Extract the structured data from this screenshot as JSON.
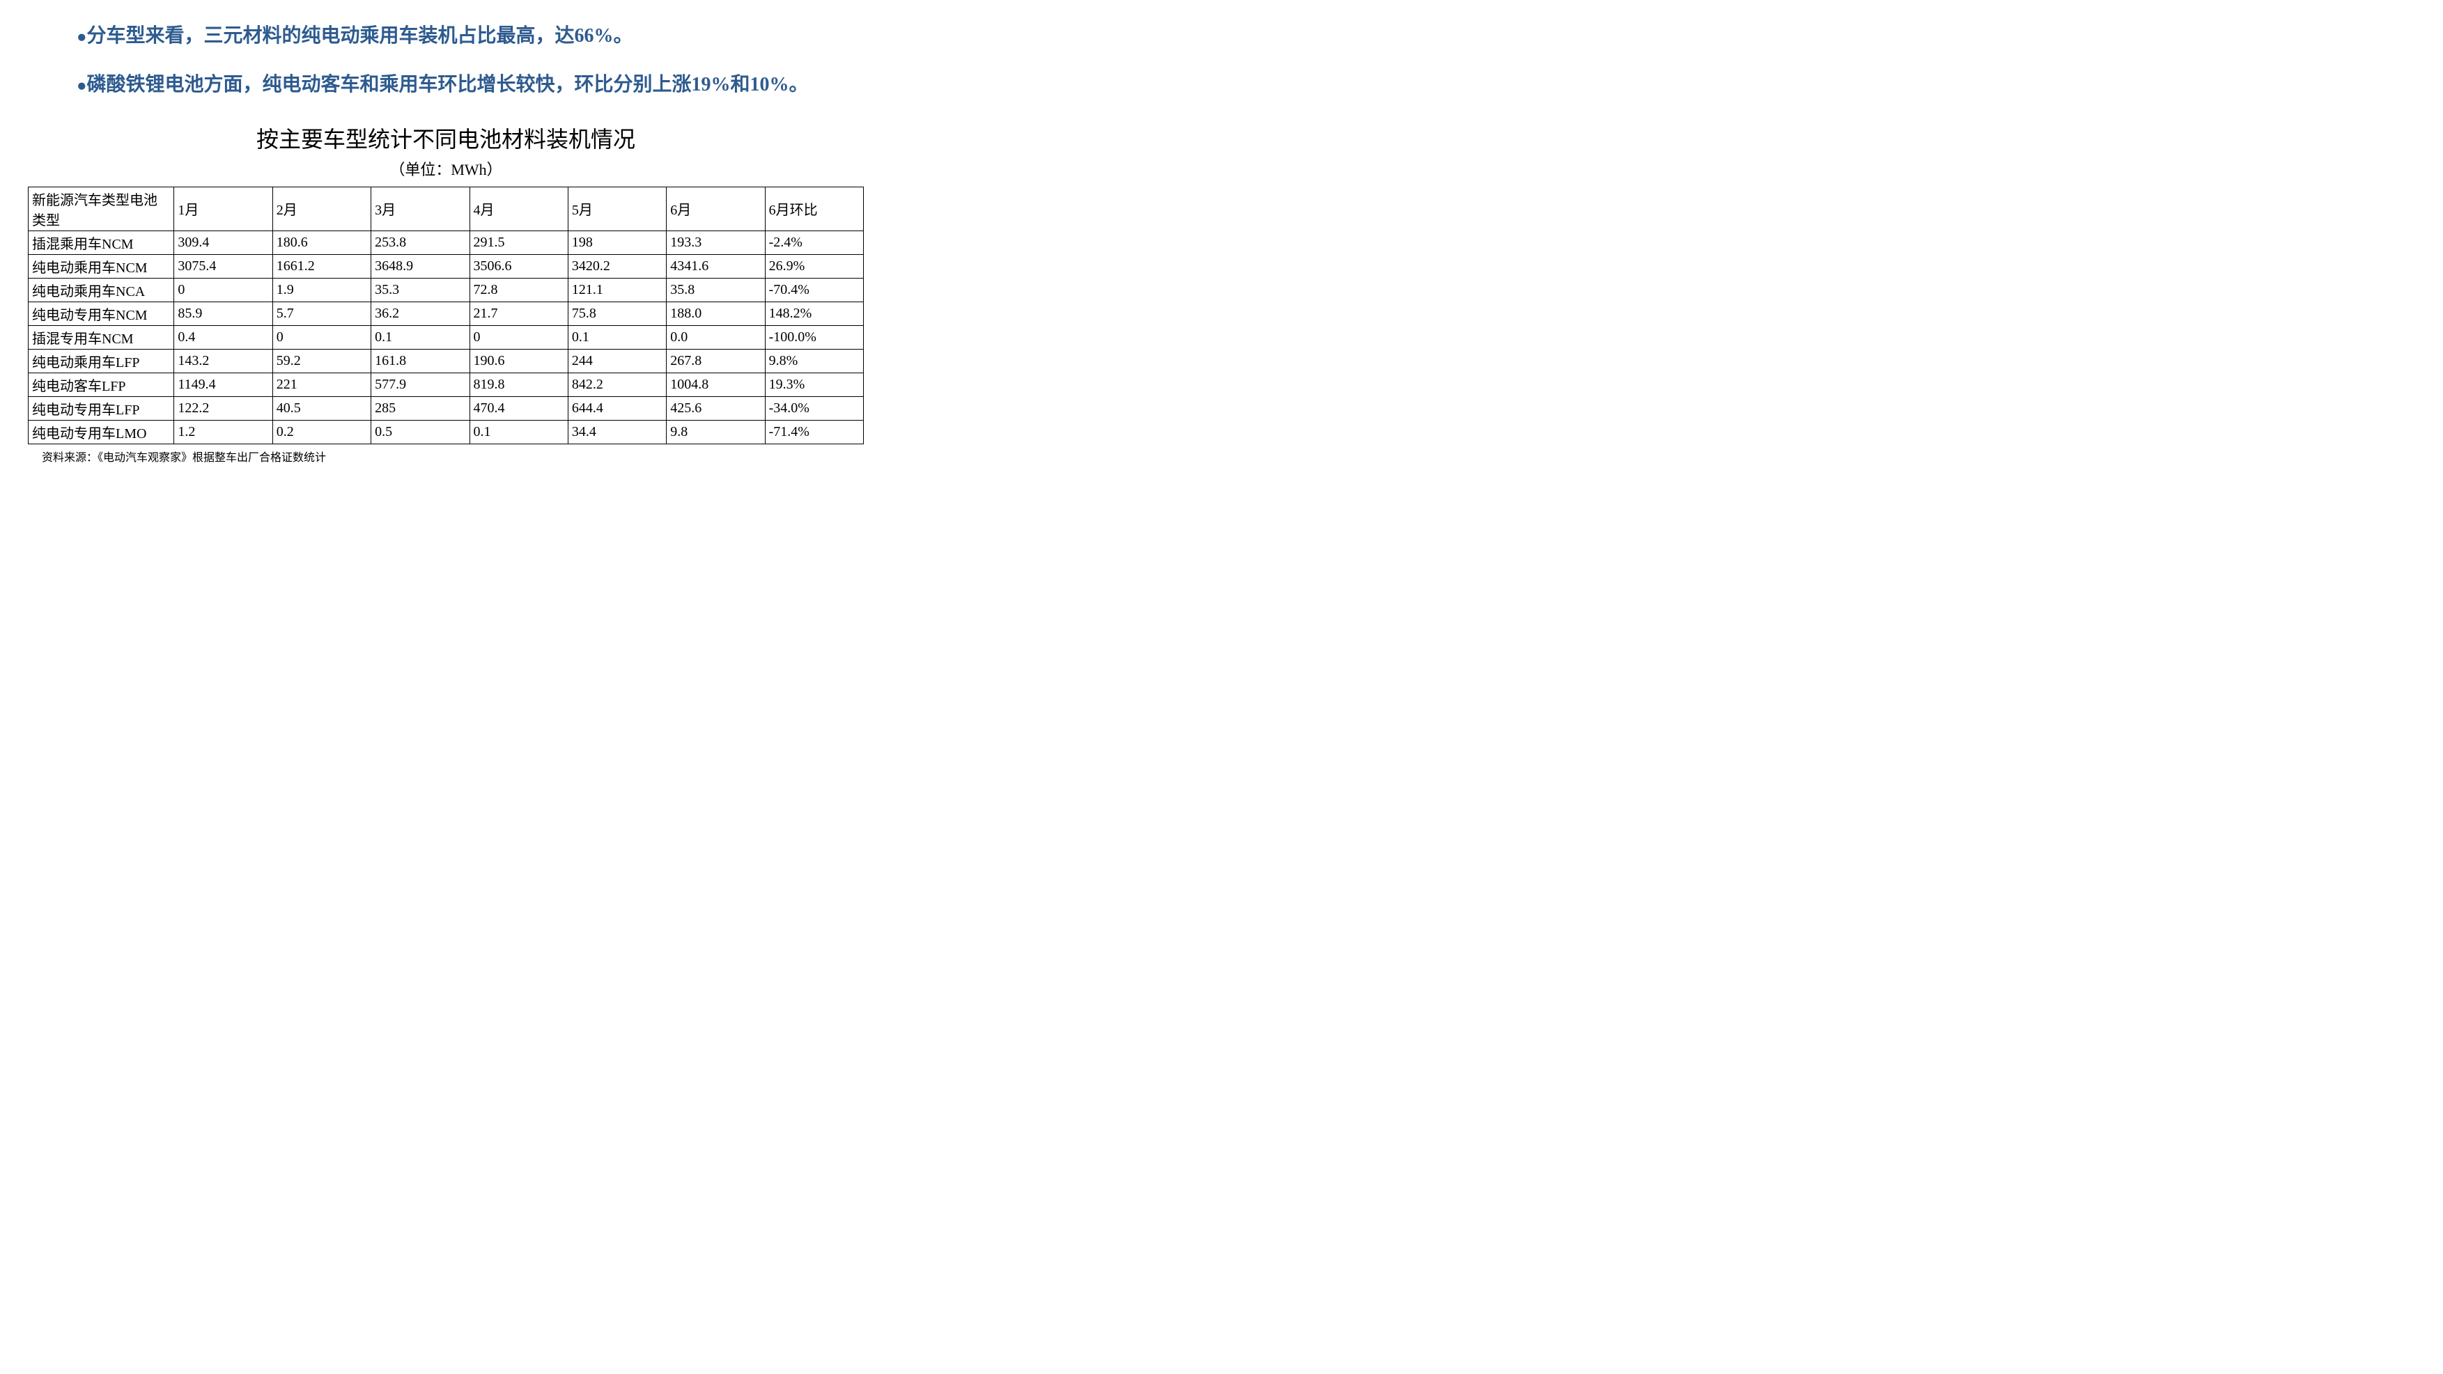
{
  "bullets": [
    "分车型来看，三元材料的纯电动乘用车装机占比最高，达66%。",
    "磷酸铁锂电池方面，纯电动客车和乘用车环比增长较快，环比分别上涨19%和10%。"
  ],
  "table": {
    "title": "按主要车型统计不同电池材料装机情况",
    "unit": "（单位：MWh）",
    "columns": [
      "新能源汽车类型电池类型",
      "1月",
      "2月",
      "3月",
      "4月",
      "5月",
      "6月",
      "6月环比"
    ],
    "rows": [
      [
        "插混乘用车NCM",
        "309.4",
        "180.6",
        "253.8",
        "291.5",
        "198",
        "193.3",
        "-2.4%"
      ],
      [
        "纯电动乘用车NCM",
        "3075.4",
        "1661.2",
        "3648.9",
        "3506.6",
        "3420.2",
        "4341.6",
        "26.9%"
      ],
      [
        "纯电动乘用车NCA",
        "0",
        "1.9",
        "35.3",
        "72.8",
        "121.1",
        "35.8",
        "-70.4%"
      ],
      [
        "纯电动专用车NCM",
        "85.9",
        "5.7",
        "36.2",
        "21.7",
        "75.8",
        "188.0",
        "148.2%"
      ],
      [
        "插混专用车NCM",
        "0.4",
        "0",
        "0.1",
        "0",
        "0.1",
        "0.0",
        "-100.0%"
      ],
      [
        "纯电动乘用车LFP",
        "143.2",
        "59.2",
        "161.8",
        "190.6",
        "244",
        "267.8",
        "9.8%"
      ],
      [
        "纯电动客车LFP",
        "1149.4",
        "221",
        "577.9",
        "819.8",
        "842.2",
        "1004.8",
        "19.3%"
      ],
      [
        "纯电动专用车LFP",
        "122.2",
        "40.5",
        "285",
        "470.4",
        "644.4",
        "425.6",
        "-34.0%"
      ],
      [
        "纯电动专用车LMO",
        "1.2",
        "0.2",
        "0.5",
        "0.1",
        "34.4",
        "9.8",
        "-71.4%"
      ]
    ],
    "source": "资料来源：《电动汽车观察家》根据整车出厂合格证数统计"
  },
  "colors": {
    "bullet_text": "#2e5b8f",
    "table_text": "#000000",
    "border": "#000000",
    "background": "#ffffff"
  }
}
